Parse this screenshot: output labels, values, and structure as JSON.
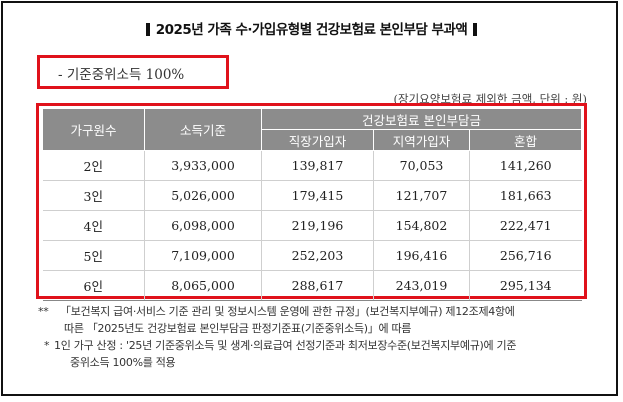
{
  "title": "2025년 가족 수·가입유형별 건강보험료 본인부담 부과액",
  "criteria": "- 기준중위소득 100%",
  "unit_note": "(장기요양보험료 제외한 금액, 단위 : 원)",
  "table": {
    "header": {
      "household": "가구원수",
      "income": "소득기준",
      "group": "건강보험료 본인부담금",
      "employee": "직장가입자",
      "regional": "지역가입자",
      "mixed": "혼합"
    },
    "rows": [
      {
        "household": "2인",
        "income": "3,933,000",
        "employee": "139,817",
        "regional": "70,053",
        "mixed": "141,260"
      },
      {
        "household": "3인",
        "income": "5,026,000",
        "employee": "179,415",
        "regional": "121,707",
        "mixed": "181,663"
      },
      {
        "household": "4인",
        "income": "6,098,000",
        "employee": "219,196",
        "regional": "154,802",
        "mixed": "222,471"
      },
      {
        "household": "5인",
        "income": "7,109,000",
        "employee": "252,203",
        "regional": "196,416",
        "mixed": "256,716"
      },
      {
        "household": "6인",
        "income": "8,065,000",
        "employee": "288,617",
        "regional": "243,019",
        "mixed": "295,134"
      }
    ]
  },
  "notes": {
    "n1_mark": "**",
    "n1_line1": "「보건복지 급여·서비스 기준 관리 및 정보시스템 운영에 관한 규정」(보건복지부예규) 제12조제4항에",
    "n1_line2": "따른 「2025년도 건강보험료 본인부담금 판정기준표(기준중위소득)」에 따름",
    "n2_mark": "*",
    "n2_line1": "1인 가구 산정 : '25년 기준중위소득 및 생계·의료급여 선정기준과 최저보장수준(보건복지부예규)에 기준",
    "n2_line2": "중위소득 100%를 적용"
  }
}
